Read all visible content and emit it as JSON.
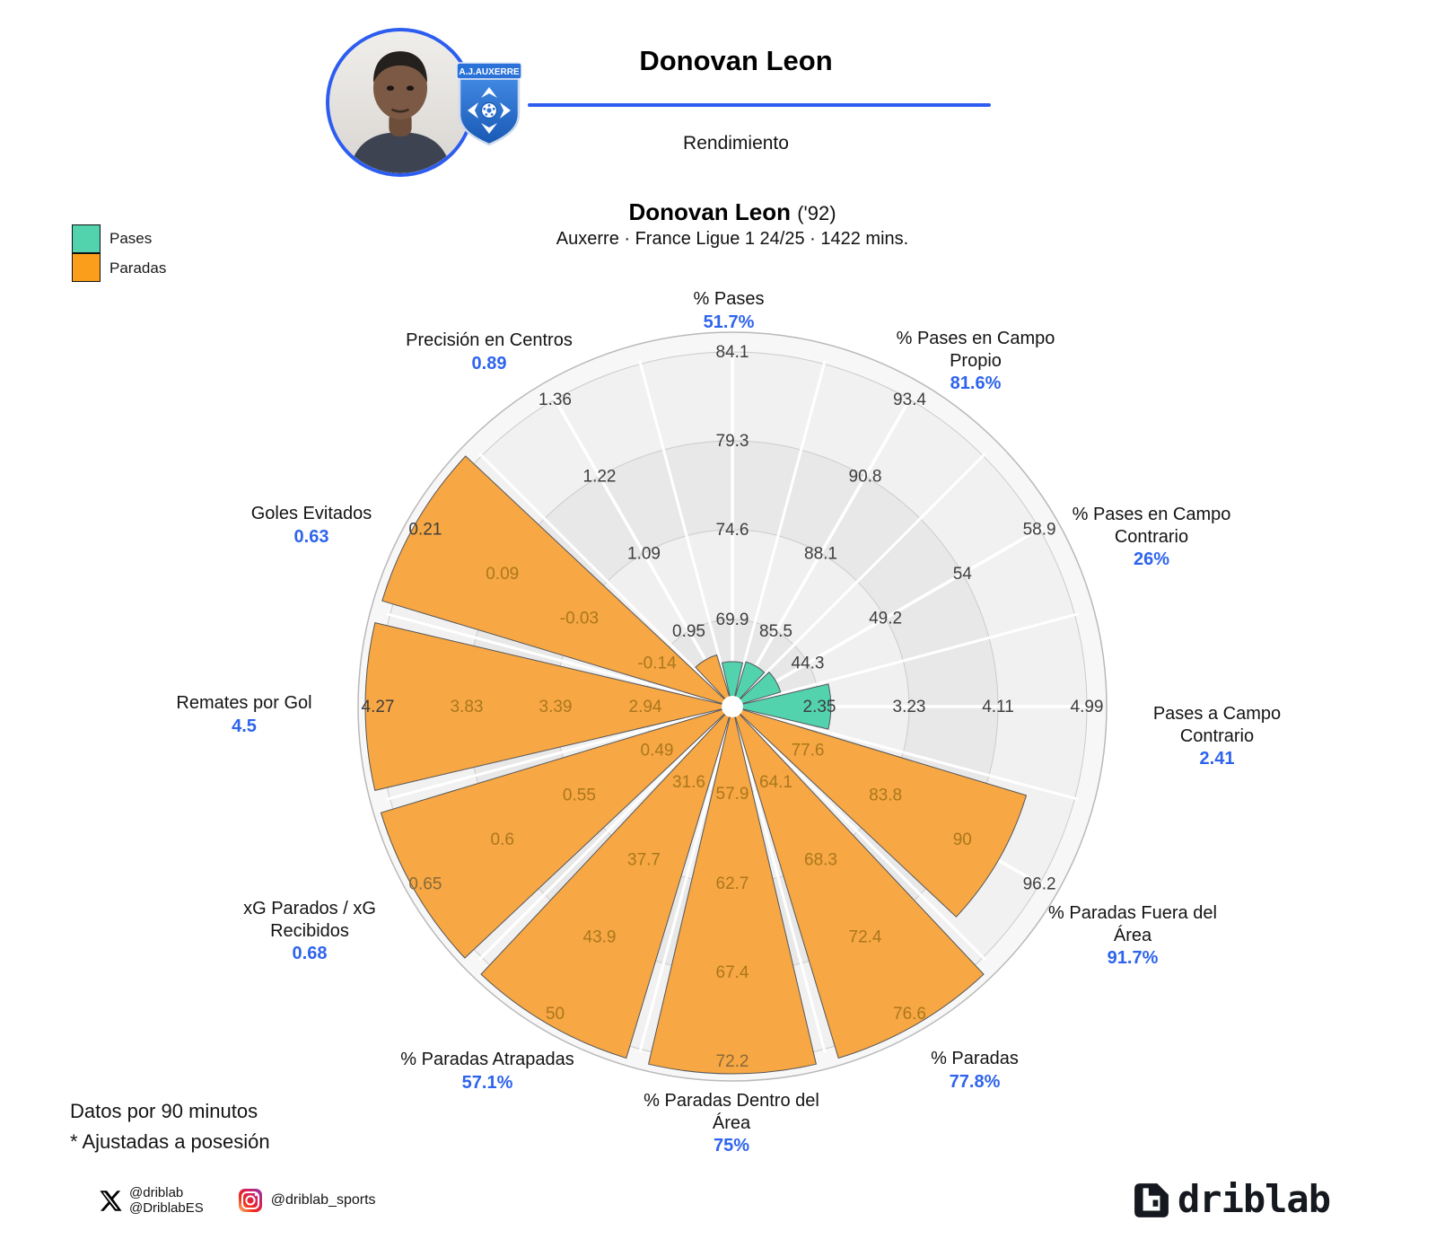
{
  "header": {
    "player_name": "Donovan Leon",
    "section_label": "Rendimiento",
    "club_badge_text": "A.J.AUXERRE"
  },
  "legend": {
    "items": [
      {
        "label": "Pases",
        "color": "#52d2ad"
      },
      {
        "label": "Paradas",
        "color": "#fa9e1b"
      }
    ]
  },
  "chart_data": {
    "type": "bar",
    "subtype": "polar-pizza-percentile",
    "title": "Donovan Leon",
    "title_suffix": "('92)",
    "subtitle": "Auxerre · France Ligue 1 24/25 · 1422 mins.",
    "rings": 4,
    "angular_step_deg": 30,
    "grid": "on",
    "series": [
      {
        "name": "Pases",
        "color": "#52d2ad"
      },
      {
        "name": "Paradas",
        "color": "#f7a743"
      }
    ],
    "sectors": [
      {
        "label": "% Pases",
        "value": "51.7%",
        "series": "Pases",
        "angle_deg": 0,
        "ticks": [
          "69.9",
          "74.6",
          "79.3",
          "84.1"
        ],
        "radius_frac": 0.127,
        "tick_colors": [
          "#3e3e3e",
          "#3e3e3e",
          "#3e3e3e",
          "#3e3e3e"
        ]
      },
      {
        "label": "% Pases en Campo Propio",
        "value": "81.6%",
        "series": "Pases",
        "angle_deg": 30,
        "ticks": [
          "85.5",
          "88.1",
          "90.8",
          "93.4"
        ],
        "radius_frac": 0.132,
        "tick_colors": [
          "#3e3e3e",
          "#3e3e3e",
          "#3e3e3e",
          "#3e3e3e"
        ]
      },
      {
        "label": "% Pases en Campo Contrario",
        "value": "26%",
        "series": "Pases",
        "angle_deg": 60,
        "ticks": [
          "44.3",
          "49.2",
          "54",
          "58.9"
        ],
        "radius_frac": 0.142,
        "tick_colors": [
          "#3e3e3e",
          "#3e3e3e",
          "#3e3e3e",
          "#3e3e3e"
        ]
      },
      {
        "label": "Pases a Campo Contrario",
        "value": "2.41",
        "series": "Pases",
        "angle_deg": 90,
        "ticks": [
          "2.35",
          "3.23",
          "4.11",
          "4.99"
        ],
        "radius_frac": 0.278,
        "tick_colors": [
          "#3e3e3e",
          "#3e3e3e",
          "#3e3e3e",
          "#3e3e3e"
        ]
      },
      {
        "label": "% Paradas Fuera del Área",
        "value": "91.7%",
        "series": "Paradas",
        "angle_deg": 120,
        "ticks": [
          "77.6",
          "83.8",
          "90",
          "96.2"
        ],
        "radius_frac": 0.866,
        "tick_colors": [
          "#ab771d",
          "#ab771d",
          "#ab771d",
          "#3e3e3e"
        ]
      },
      {
        "label": "% Paradas",
        "value": "77.8%",
        "series": "Paradas",
        "angle_deg": 150,
        "ticks": [
          "64.1",
          "68.3",
          "72.4",
          "76.6"
        ],
        "radius_frac": 1.038,
        "tick_colors": [
          "#ab771d",
          "#ab771d",
          "#ab771d",
          "#ab771d"
        ]
      },
      {
        "label": "% Paradas Dentro del Área",
        "value": "75%",
        "series": "Paradas",
        "angle_deg": 180,
        "ticks": [
          "57.9",
          "62.7",
          "67.4",
          "72.2"
        ],
        "radius_frac": 1.038,
        "tick_colors": [
          "#ab771d",
          "#ab771d",
          "#ab771d",
          "#8a6a3a"
        ]
      },
      {
        "label": "% Paradas Atrapadas",
        "value": "57.1%",
        "series": "Paradas",
        "angle_deg": 210,
        "ticks": [
          "31.6",
          "37.7",
          "43.9",
          "50"
        ],
        "radius_frac": 1.038,
        "tick_colors": [
          "#ab771d",
          "#ab771d",
          "#ab771d",
          "#ab771d"
        ]
      },
      {
        "label": "xG Parados / xG Recibidos",
        "value": "0.68",
        "series": "Paradas",
        "angle_deg": 240,
        "ticks": [
          "0.49",
          "0.55",
          "0.6",
          "0.65"
        ],
        "radius_frac": 1.038,
        "tick_colors": [
          "#ab771d",
          "#ab771d",
          "#ab771d",
          "#8a6a3a"
        ]
      },
      {
        "label": "Remates por Gol",
        "value": "4.5",
        "series": "Paradas",
        "angle_deg": 270,
        "ticks": [
          "2.94",
          "3.39",
          "3.83",
          "4.27"
        ],
        "radius_frac": 1.038,
        "tick_colors": [
          "#ab771d",
          "#ab771d",
          "#ab771d",
          "#3e3e3e"
        ]
      },
      {
        "label": "Goles Evitados",
        "value": "0.63",
        "series": "Paradas",
        "angle_deg": 300,
        "ticks": [
          "-0.14",
          "-0.03",
          "0.09",
          "0.21"
        ],
        "radius_frac": 1.032,
        "tick_colors": [
          "#ab771d",
          "#ab771d",
          "#ab771d",
          "#3e3e3e"
        ]
      },
      {
        "label": "Precisión en Centros",
        "value": "0.89",
        "series": "Paradas",
        "angle_deg": 330,
        "ticks": [
          "0.95",
          "1.09",
          "1.22",
          "1.36"
        ],
        "radius_frac": 0.152,
        "tick_colors": [
          "#3e3e3e",
          "#3e3e3e",
          "#3e3e3e",
          "#3e3e3e"
        ]
      }
    ]
  },
  "footnotes": [
    "Datos por 90 minutos",
    "* Ajustadas a posesión"
  ],
  "social": {
    "x_handle_1": "@driblab",
    "x_handle_2": "@DriblabES",
    "instagram_handle": "@driblab_sports"
  },
  "brand": {
    "logo_text": "driblab"
  },
  "colors": {
    "accent_blue": "#2c5df0",
    "value_blue": "#2e64ed",
    "tick_dark": "#3e3e3e",
    "tick_over_orange": "#ab771d"
  }
}
